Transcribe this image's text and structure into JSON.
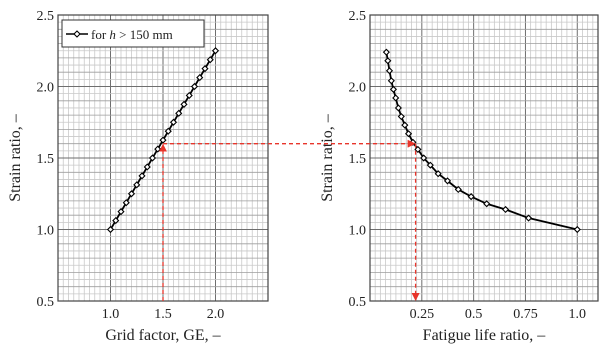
{
  "chart_data": [
    {
      "type": "line",
      "xlabel": "Grid factor, GE, –",
      "ylabel": "Strain ratio, –",
      "xlim": [
        0.5,
        2.5
      ],
      "ylim": [
        0.5,
        2.5
      ],
      "xticks": [
        "1.0",
        "1.5",
        "2.0"
      ],
      "yticks": [
        "0.5",
        "1.0",
        "1.5",
        "2.0",
        "2.5"
      ],
      "grid": true,
      "legend_position": "top-left",
      "legend": {
        "prefix": "for ",
        "var": "h",
        "suffix": " > 150 mm"
      },
      "series": [
        {
          "x": [
            1.0,
            1.05,
            1.1,
            1.15,
            1.2,
            1.25,
            1.3,
            1.35,
            1.4,
            1.45,
            1.5,
            1.55,
            1.6,
            1.65,
            1.7,
            1.75,
            1.8,
            1.85,
            1.9,
            1.95,
            2.0
          ],
          "y": [
            1.0,
            1.0625,
            1.125,
            1.1875,
            1.25,
            1.3125,
            1.375,
            1.4375,
            1.5,
            1.5625,
            1.625,
            1.6875,
            1.75,
            1.8125,
            1.875,
            1.9375,
            2.0,
            2.0625,
            2.125,
            2.1875,
            2.25
          ]
        }
      ],
      "annotation": {
        "x": 1.5,
        "y": 1.6
      }
    },
    {
      "type": "line",
      "xlabel": "Fatigue life ratio, –",
      "ylabel": "Strain ratio, –",
      "xlim": [
        0.0,
        1.1
      ],
      "ylim": [
        0.5,
        2.5
      ],
      "xticks": [
        "0.25",
        "0.5",
        "0.75",
        "1.0"
      ],
      "yticks": [
        "0.5",
        "1.0",
        "1.5",
        "2.0",
        "2.5"
      ],
      "grid": true,
      "series": [
        {
          "x": [
            0.079,
            0.086,
            0.094,
            0.103,
            0.113,
            0.124,
            0.137,
            0.151,
            0.168,
            0.186,
            0.207,
            0.231,
            0.259,
            0.291,
            0.329,
            0.374,
            0.426,
            0.488,
            0.563,
            0.654,
            0.765,
            1.0
          ],
          "y": [
            2.24,
            2.18,
            2.11,
            2.04,
            1.98,
            1.92,
            1.85,
            1.79,
            1.73,
            1.67,
            1.61,
            1.56,
            1.5,
            1.45,
            1.39,
            1.34,
            1.28,
            1.23,
            1.18,
            1.14,
            1.08,
            1.0
          ]
        }
      ],
      "annotation": {
        "x": 0.22,
        "y": 1.6
      }
    }
  ],
  "colors": {
    "curve": "#000000",
    "grid_major": "#6e6e6e",
    "grid_minor": "#9e9e9e",
    "grid_dense": "#c9c9c9",
    "annotation": "#e8352b"
  }
}
